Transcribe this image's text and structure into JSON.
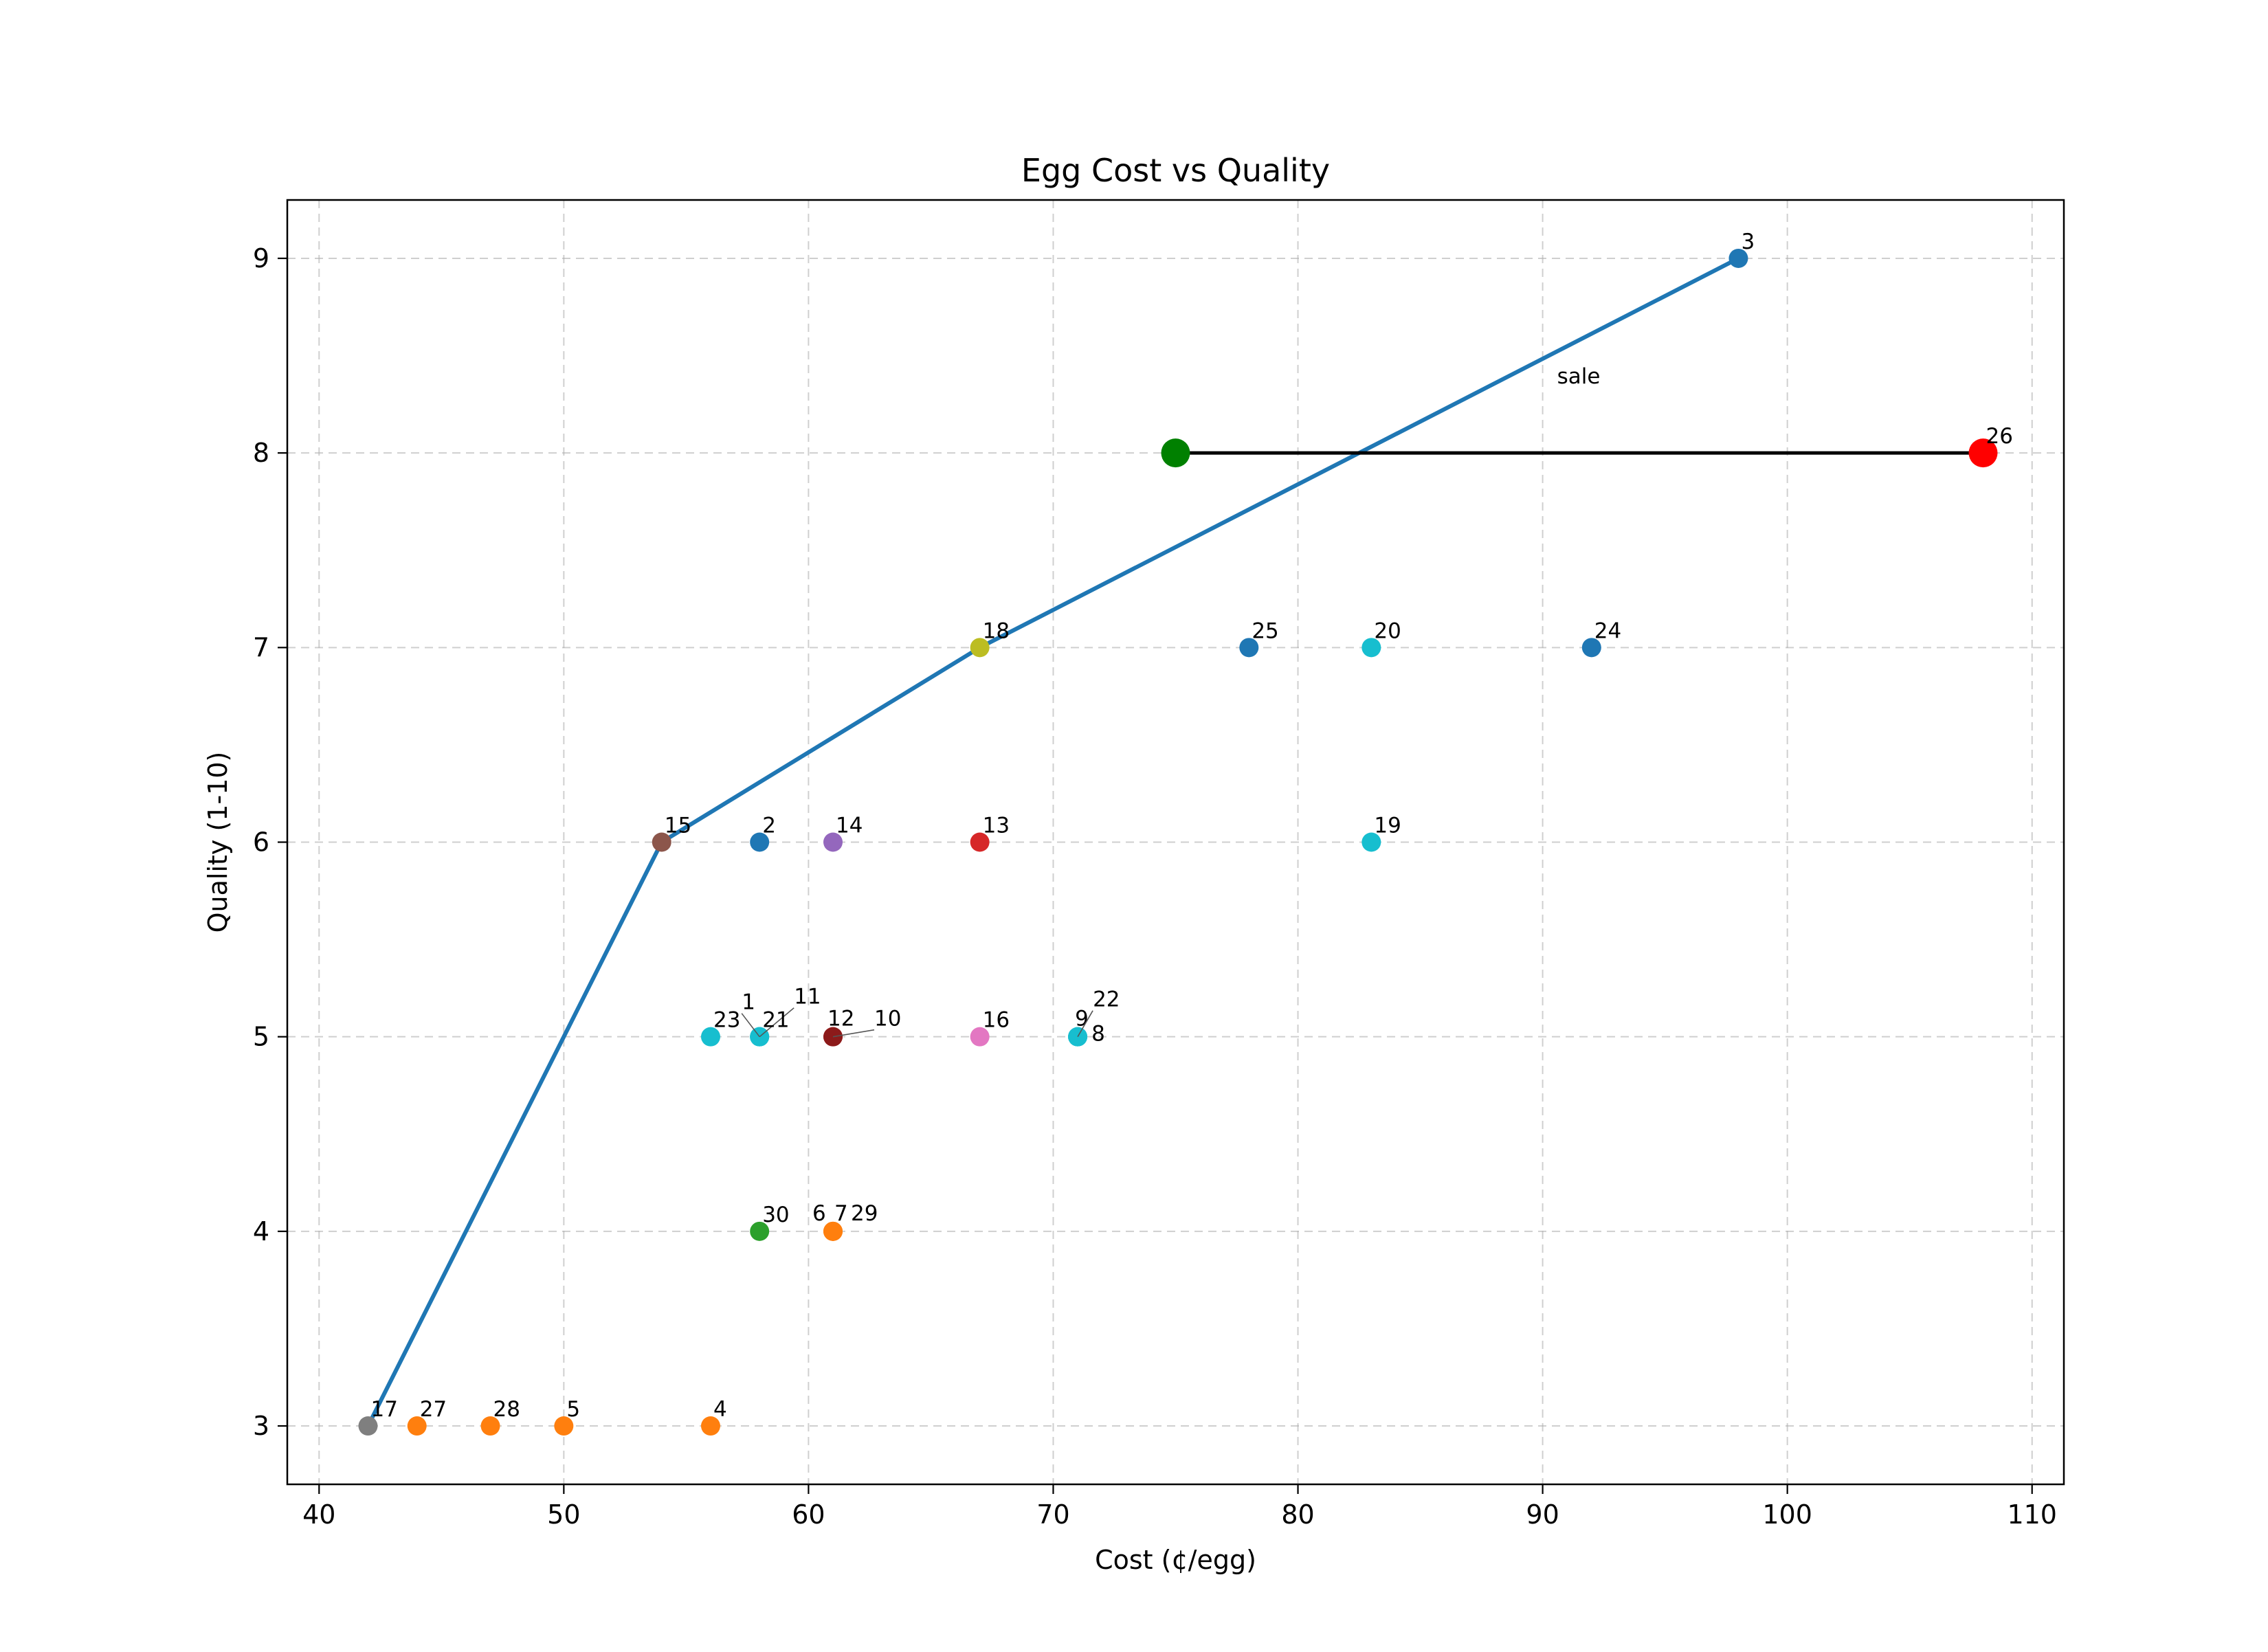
{
  "chart_data": {
    "type": "scatter",
    "title": "Egg Cost vs Quality",
    "xlabel": "Cost (¢/egg)",
    "ylabel": "Quality (1-10)",
    "xlim": [
      38.7,
      111.3
    ],
    "ylim": [
      2.7,
      9.3
    ],
    "xticks": [
      40,
      50,
      60,
      70,
      80,
      90,
      100,
      110
    ],
    "yticks": [
      3,
      4,
      5,
      6,
      7,
      8,
      9
    ],
    "grid": true,
    "points": [
      {
        "label": "1",
        "x": 58,
        "y": 5,
        "color": "#17becf"
      },
      {
        "label": "2",
        "x": 58,
        "y": 6,
        "color": "#1f77b4"
      },
      {
        "label": "3",
        "x": 98,
        "y": 9,
        "color": "#1f77b4"
      },
      {
        "label": "4",
        "x": 56,
        "y": 3,
        "color": "#ff7f0e"
      },
      {
        "label": "5",
        "x": 50,
        "y": 3,
        "color": "#ff7f0e"
      },
      {
        "label": "6",
        "x": 61,
        "y": 4,
        "color": "#ff7f0e"
      },
      {
        "label": "7",
        "x": 61,
        "y": 4,
        "color": "#ff7f0e"
      },
      {
        "label": "8",
        "x": 71,
        "y": 5,
        "color": "#17becf"
      },
      {
        "label": "9",
        "x": 71,
        "y": 5,
        "color": "#17becf"
      },
      {
        "label": "10",
        "x": 61,
        "y": 5,
        "color": "#d62728"
      },
      {
        "label": "11",
        "x": 58,
        "y": 5,
        "color": "#17becf"
      },
      {
        "label": "12",
        "x": 61,
        "y": 5,
        "color": "#8c1a1a"
      },
      {
        "label": "13",
        "x": 67,
        "y": 6,
        "color": "#d62728"
      },
      {
        "label": "14",
        "x": 61,
        "y": 6,
        "color": "#9467bd"
      },
      {
        "label": "15",
        "x": 54,
        "y": 6,
        "color": "#8c564b"
      },
      {
        "label": "16",
        "x": 67,
        "y": 5,
        "color": "#e377c2"
      },
      {
        "label": "17",
        "x": 42,
        "y": 3,
        "color": "#7f7f7f"
      },
      {
        "label": "18",
        "x": 67,
        "y": 7,
        "color": "#bcbd22"
      },
      {
        "label": "19",
        "x": 83,
        "y": 6,
        "color": "#17becf"
      },
      {
        "label": "20",
        "x": 83,
        "y": 7,
        "color": "#17becf"
      },
      {
        "label": "21",
        "x": 58,
        "y": 5,
        "color": "#17becf"
      },
      {
        "label": "22",
        "x": 71,
        "y": 5,
        "color": "#17becf"
      },
      {
        "label": "23",
        "x": 56,
        "y": 5,
        "color": "#17becf"
      },
      {
        "label": "24",
        "x": 92,
        "y": 7,
        "color": "#1f77b4"
      },
      {
        "label": "25",
        "x": 78,
        "y": 7,
        "color": "#1f77b4"
      },
      {
        "label": "26",
        "x": 108,
        "y": 8,
        "color": "#ff0000"
      },
      {
        "label": "27",
        "x": 44,
        "y": 3,
        "color": "#ff7f0e"
      },
      {
        "label": "28",
        "x": 47,
        "y": 3,
        "color": "#ff7f0e"
      },
      {
        "label": "29",
        "x": 61,
        "y": 4,
        "color": "#ff7f0e"
      },
      {
        "label": "30",
        "x": 58,
        "y": 4,
        "color": "#2ca02c"
      }
    ],
    "frontier": {
      "color": "#1f77b4",
      "points": [
        [
          42,
          3
        ],
        [
          54,
          6
        ],
        [
          67,
          7
        ],
        [
          98,
          9
        ]
      ]
    },
    "sale_point": {
      "x": 75,
      "y": 8,
      "color": "#008000"
    },
    "annotation": {
      "text": "sale",
      "from": [
        108,
        8
      ],
      "to": [
        75,
        8
      ]
    }
  }
}
